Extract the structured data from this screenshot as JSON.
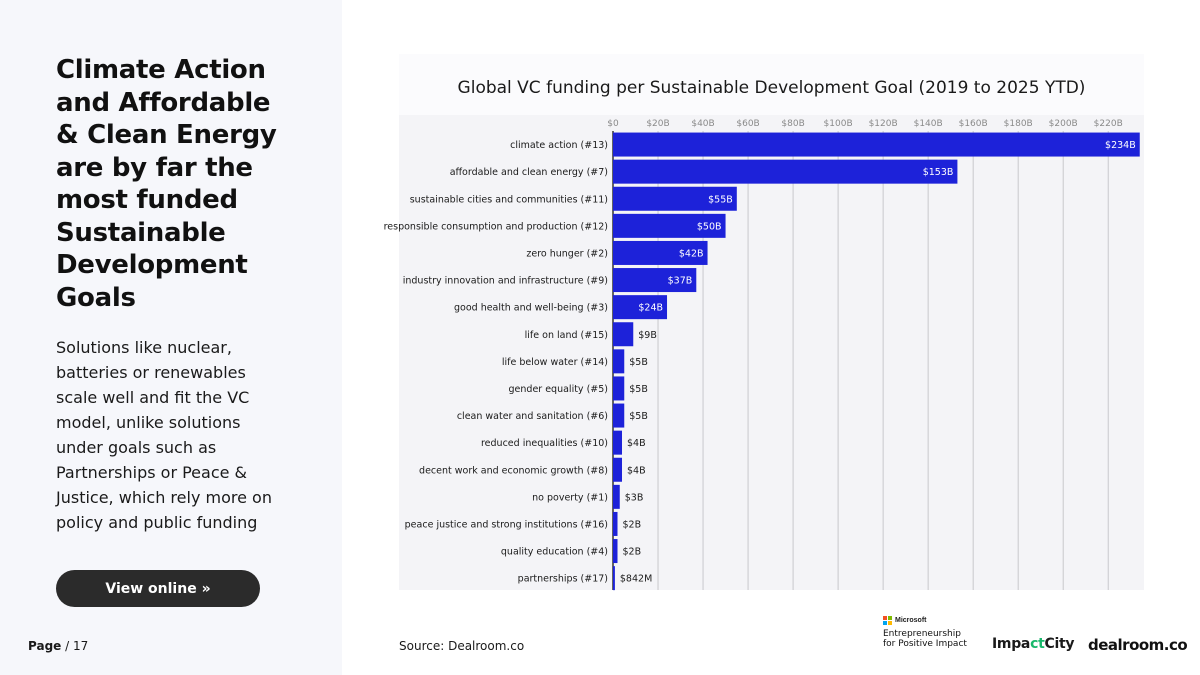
{
  "left_panel": {
    "headline": "Climate Action and Affordable & Clean Energy are by far the most funded Sustainable Development Goals",
    "body": "Solutions like nuclear, batteries or renewables scale well and fit the VC model, unlike solutions under goals such as Partnerships or Peace & Justice, which rely more on policy and public funding",
    "view_button_label": "View online »",
    "page_label": "Page",
    "page_number": "/ 17"
  },
  "source": "Source:  Dealroom.co",
  "logos": {
    "microsoft_small": "Microsoft",
    "microsoft_line1": "Entrepreneurship",
    "microsoft_line2": "for Positive Impact",
    "impactcity_a": "Impa",
    "impactcity_b": "ct",
    "impactcity_c": "City",
    "dealroom": "dealroom.co"
  },
  "colors": {
    "bar": "#1d22d9",
    "grid": "#c8c8cc",
    "axis_label": "#8a8a8a",
    "panel_bg": "#f6f7fb"
  },
  "chart_data": {
    "type": "bar",
    "orientation": "horizontal",
    "title": "Global VC funding per Sustainable Development Goal (2019 to 2025 YTD)",
    "unit": "$B",
    "xlim": [
      0,
      235
    ],
    "ticks": [
      0,
      20,
      40,
      60,
      80,
      100,
      120,
      140,
      160,
      180,
      200,
      220
    ],
    "tick_labels": [
      "$0",
      "$20B",
      "$40B",
      "$60B",
      "$80B",
      "$100B",
      "$120B",
      "$140B",
      "$160B",
      "$180B",
      "$200B",
      "$220B"
    ],
    "grid": true,
    "categories": [
      "climate action (#13)",
      "affordable and clean energy (#7)",
      "sustainable cities and communities (#11)",
      "responsible consumption and production (#12)",
      "zero hunger (#2)",
      "industry innovation and infrastructure (#9)",
      "good health and well-being (#3)",
      "life on land (#15)",
      "life below water (#14)",
      "gender equality (#5)",
      "clean water and sanitation (#6)",
      "reduced inequalities (#10)",
      "decent work and economic growth (#8)",
      "no poverty (#1)",
      "peace justice and strong institutions (#16)",
      "quality education (#4)",
      "partnerships (#17)"
    ],
    "values": [
      234,
      153,
      55,
      50,
      42,
      37,
      24,
      9,
      5,
      5,
      5,
      4,
      4,
      3,
      2,
      2,
      0.842
    ],
    "value_labels": [
      "$234B",
      "$153B",
      "$55B",
      "$50B",
      "$42B",
      "$37B",
      "$24B",
      "$9B",
      "$5B",
      "$5B",
      "$5B",
      "$4B",
      "$4B",
      "$3B",
      "$2B",
      "$2B",
      "$842M"
    ]
  }
}
